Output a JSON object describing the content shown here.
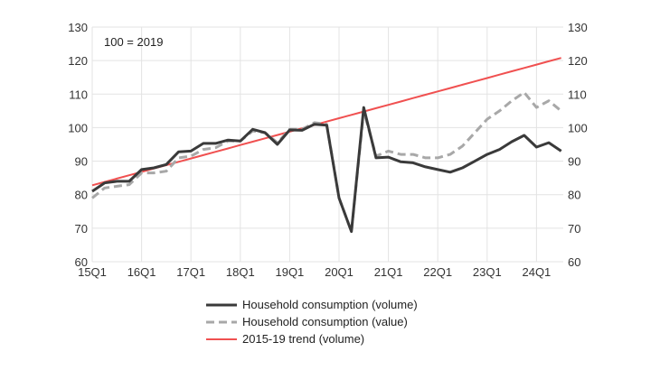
{
  "chart_data": {
    "type": "line",
    "annotation": "100 = 2019",
    "x": [
      "15Q1",
      "15Q2",
      "15Q3",
      "15Q4",
      "16Q1",
      "16Q2",
      "16Q3",
      "16Q4",
      "17Q1",
      "17Q2",
      "17Q3",
      "17Q4",
      "18Q1",
      "18Q2",
      "18Q3",
      "18Q4",
      "19Q1",
      "19Q2",
      "19Q3",
      "19Q4",
      "20Q1",
      "20Q2",
      "20Q3",
      "20Q4",
      "21Q1",
      "21Q2",
      "21Q3",
      "21Q4",
      "22Q1",
      "22Q2",
      "22Q3",
      "22Q4",
      "23Q1",
      "23Q2",
      "23Q3",
      "23Q4",
      "24Q1",
      "24Q2",
      "24Q3"
    ],
    "x_tick_labels": [
      "15Q1",
      "16Q1",
      "17Q1",
      "18Q1",
      "19Q1",
      "20Q1",
      "21Q1",
      "22Q1",
      "23Q1",
      "24Q1"
    ],
    "ylim": [
      60,
      130
    ],
    "y_ticks": [
      60,
      70,
      80,
      90,
      100,
      110,
      120,
      130
    ],
    "y_tick_labels": [
      "60",
      "70",
      "80",
      "90",
      "100",
      "110",
      "120",
      "130"
    ],
    "grid": true,
    "legend_position": "bottom",
    "series": [
      {
        "name": "Household consumption (volume)",
        "color": "#3a3a3a",
        "style": "solid",
        "values": [
          81,
          83.5,
          84,
          84,
          87.5,
          88,
          89,
          92.8,
          93,
          95.3,
          95.3,
          96.3,
          96,
          99.5,
          98.5,
          95,
          99.3,
          99.2,
          101,
          100.7,
          79,
          69,
          106,
          91,
          91.2,
          89.8,
          89.5,
          88.3,
          87.5,
          86.7,
          88,
          90,
          92,
          93.5,
          95.8,
          97.7,
          94.2,
          95.5,
          93
        ]
      },
      {
        "name": "Household consumption (value)",
        "color": "#a8a8a8",
        "style": "dashed",
        "values": [
          79,
          82,
          82.5,
          83,
          86.5,
          86.5,
          87,
          91,
          91.5,
          93.5,
          94,
          96,
          96,
          99,
          98.5,
          95.5,
          99.5,
          99.5,
          101.5,
          101,
          79,
          69,
          105,
          91.5,
          93,
          92,
          92,
          91,
          91,
          92,
          94.5,
          98.5,
          102.5,
          105,
          108,
          110.5,
          106,
          108,
          105
        ]
      },
      {
        "name": "2015-19 trend (volume)",
        "color": "#f05050",
        "style": "solid",
        "values": [
          82.8,
          83.8,
          84.8,
          85.8,
          86.8,
          87.8,
          88.8,
          89.8,
          90.8,
          91.8,
          92.8,
          93.8,
          94.8,
          95.8,
          96.8,
          97.8,
          98.8,
          99.8,
          100.8,
          101.8,
          102.8,
          103.8,
          104.8,
          105.8,
          106.8,
          107.8,
          108.8,
          109.8,
          110.8,
          111.8,
          112.8,
          113.8,
          114.8,
          115.8,
          116.8,
          117.8,
          118.8,
          119.8,
          120.8
        ]
      }
    ]
  }
}
